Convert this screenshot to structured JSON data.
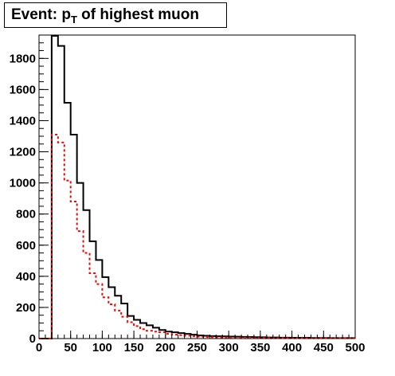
{
  "chart_data": {
    "type": "histogram",
    "title": {
      "prefix": "Event: p",
      "subscript": "T",
      "suffix": " of highest muon"
    },
    "xlabel": "",
    "ylabel": "",
    "xlim": [
      0,
      500
    ],
    "ylim": [
      0,
      1950
    ],
    "x_ticks": [
      0,
      50,
      100,
      150,
      200,
      250,
      300,
      350,
      400,
      450,
      500
    ],
    "x_tick_labels": [
      "0",
      "50",
      "100",
      "150",
      "200",
      "250",
      "300",
      "350",
      "400",
      "450",
      "500"
    ],
    "y_ticks": [
      0,
      200,
      400,
      600,
      800,
      1000,
      1200,
      1400,
      1600,
      1800
    ],
    "y_tick_labels": [
      "0",
      "200",
      "400",
      "600",
      "800",
      "1000",
      "1200",
      "1400",
      "1600",
      "1800"
    ],
    "bin_width": 10,
    "bin_edges_start": 0,
    "series": [
      {
        "style": "solid",
        "color": "#000000",
        "values": [
          0,
          0,
          1945,
          1880,
          1515,
          1310,
          1000,
          825,
          625,
          505,
          395,
          330,
          275,
          225,
          145,
          120,
          100,
          85,
          70,
          55,
          45,
          40,
          35,
          30,
          25,
          20,
          18,
          16,
          15,
          14,
          13,
          12,
          11,
          10,
          9,
          8,
          7,
          7,
          6,
          6,
          5,
          5,
          5,
          4,
          4,
          4,
          3,
          3,
          3,
          3
        ]
      },
      {
        "style": "dashed",
        "color": "#ff0000",
        "values": [
          0,
          0,
          1310,
          1260,
          1015,
          880,
          690,
          550,
          420,
          350,
          265,
          220,
          180,
          140,
          105,
          80,
          60,
          50,
          45,
          40,
          30,
          25,
          22,
          18,
          15,
          12,
          10,
          9,
          8,
          7,
          6,
          6,
          5,
          5,
          4,
          4,
          4,
          3,
          3,
          3,
          3,
          3,
          2,
          2,
          2,
          2,
          2,
          2,
          2,
          2
        ]
      }
    ]
  }
}
